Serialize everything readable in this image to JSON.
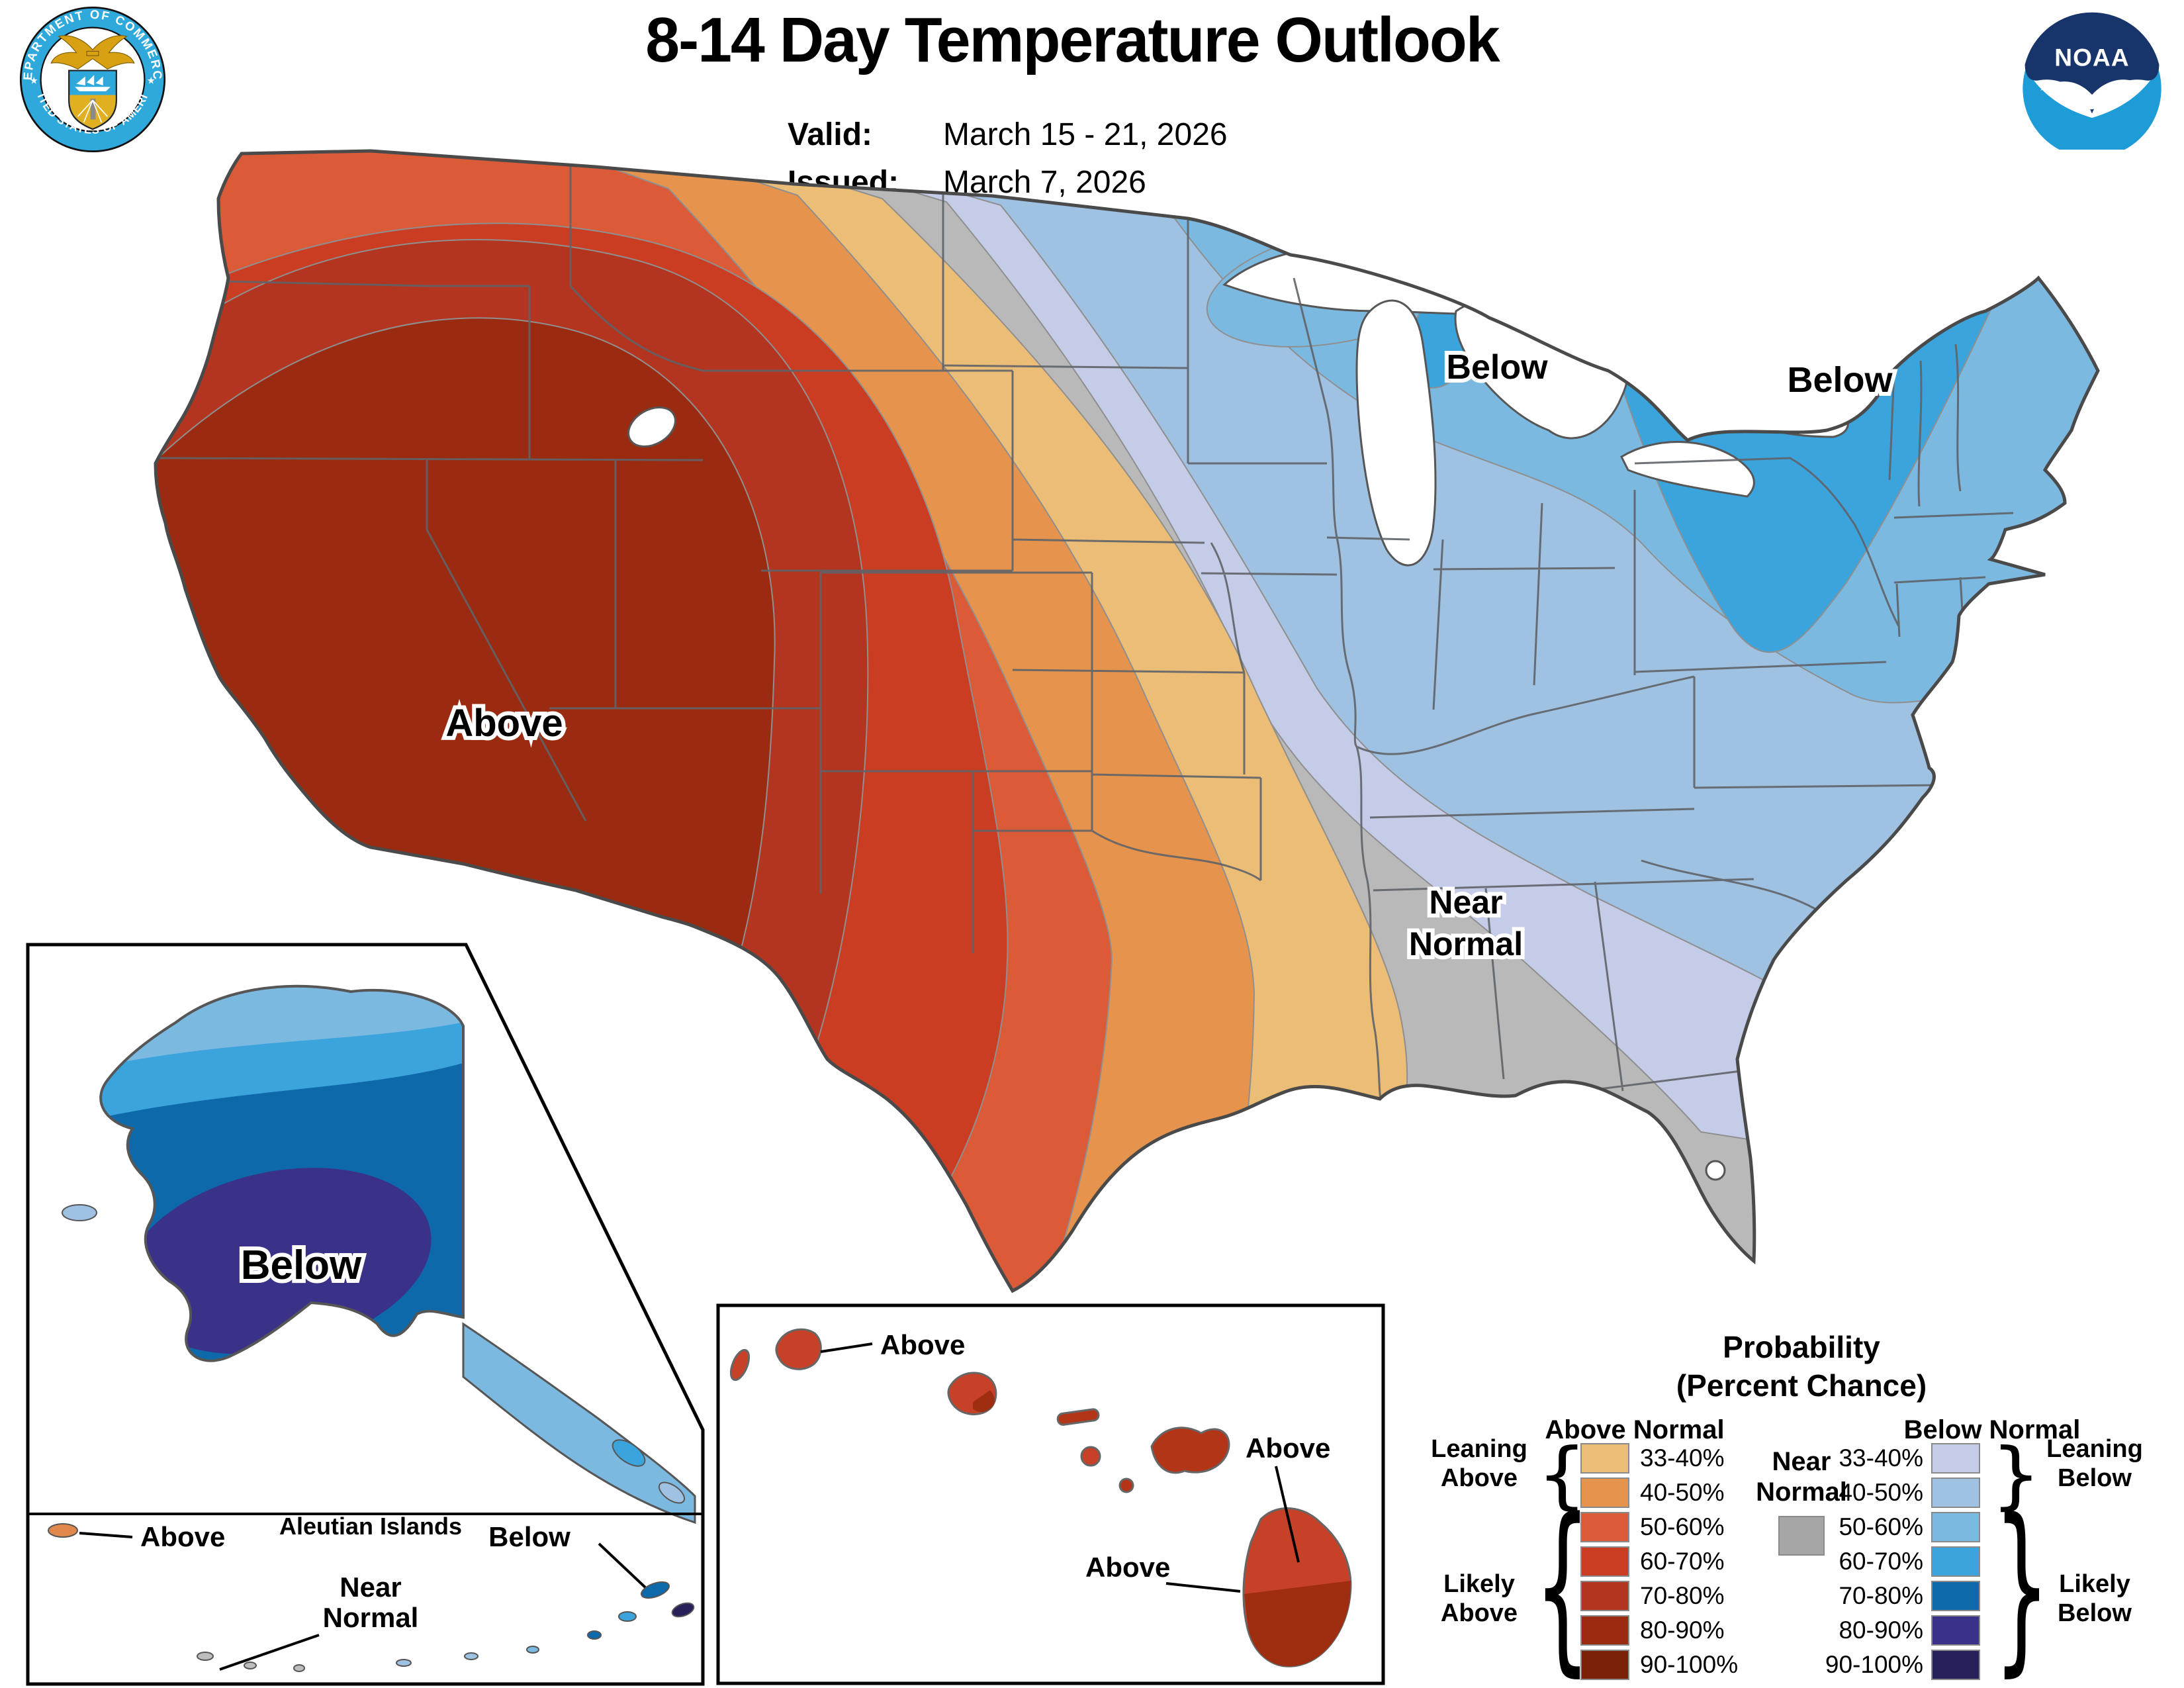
{
  "header": {
    "title": "8-14 Day Temperature Outlook",
    "valid_label": "Valid:",
    "valid_value": "March 15 - 21, 2026",
    "issued_label": "Issued:",
    "issued_value": "March 7, 2026",
    "noaa_text": "NOAA",
    "seal_top_text": "DEPARTMENT OF COMMERCE",
    "seal_bottom_text": "UNITED STATES OF AMERICA"
  },
  "map": {
    "labels": {
      "above_west": "Above",
      "below_midwest": "Below",
      "below_northeast": "Below",
      "near_line1": "Near",
      "near_line2": "Normal"
    },
    "alaska": {
      "below": "Below"
    },
    "aleutians": {
      "title": "Aleutian Islands",
      "above": "Above",
      "below": "Below",
      "near_line1": "Near",
      "near_line2": "Normal"
    },
    "hawaii": {
      "above1": "Above",
      "above2": "Above",
      "above3": "Above"
    },
    "colors": {
      "near": "#B9B9B9",
      "water": "#FFFFFF",
      "outline": "#4a4a4a",
      "state_line": "#5f6368",
      "aleutian_orange": "#E0874B",
      "hawaii_red": "#C64127",
      "hawaii_dark": "#9F2D10",
      "hawaii_mid": "#B23518"
    }
  },
  "legend": {
    "title_line1": "Probability",
    "title_line2": "(Percent Chance)",
    "above_header": "Above Normal",
    "below_header": "Below Normal",
    "near_line1": "Near",
    "near_line2": "Normal",
    "near_color": "#A6A6A6",
    "ranges": [
      "33-40%",
      "40-50%",
      "50-60%",
      "60-70%",
      "70-80%",
      "80-90%",
      "90-100%"
    ],
    "above_colors": [
      "#ECBD77",
      "#E6944D",
      "#DB5B38",
      "#CB3D23",
      "#B33520",
      "#9A2B10",
      "#7A2108"
    ],
    "below_colors": [
      "#C5CCE8",
      "#9FC1E2",
      "#7CB9E0",
      "#3CA4DD",
      "#0E69AA",
      "#3A3189",
      "#262058"
    ],
    "groups": {
      "leaning_above_1": "Leaning",
      "leaning_above_2": "Above",
      "likely_above_1": "Likely",
      "likely_above_2": "Above",
      "leaning_below_1": "Leaning",
      "leaning_below_2": "Below",
      "likely_below_1": "Likely",
      "likely_below_2": "Below"
    },
    "brace_open": "{",
    "brace_close": "}"
  }
}
